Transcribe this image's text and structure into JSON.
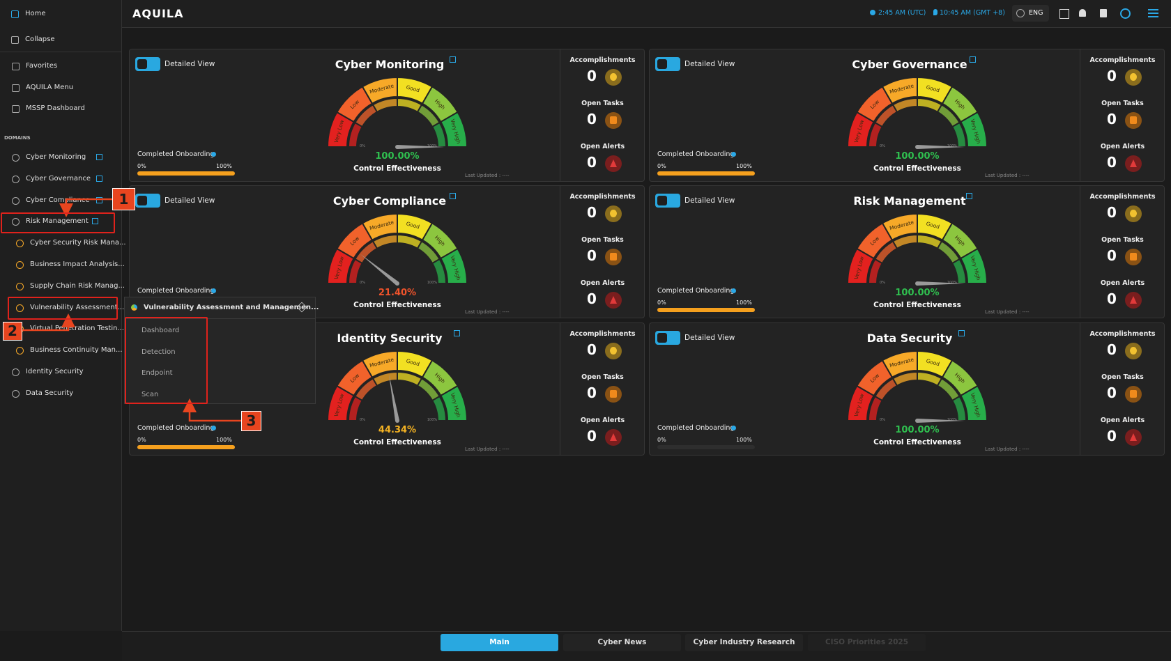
{
  "topbar": {
    "logo": "AQUILA",
    "time_utc": "2:45 AM (UTC)",
    "time_local": "10:45 AM (GMT +8)",
    "language": "ENG"
  },
  "sidebar": {
    "top": [
      "Home",
      "Collapse"
    ],
    "nav": [
      "Favorites",
      "AQUILA Menu",
      "MSSP Dashboard"
    ],
    "section_label": "DOMAINS",
    "domains": [
      {
        "label": "Cyber Monitoring",
        "link": true
      },
      {
        "label": "Cyber Governance",
        "link": true
      },
      {
        "label": "Cyber Compliance",
        "link": true
      },
      {
        "label": "Risk Management",
        "link": true,
        "expanded": true,
        "children": [
          "Cyber Security Risk Mana...",
          "Business Impact Analysis...",
          "Supply Chain Risk Manag...",
          "Vulnerability Assessment...",
          "Virtual Penetration Testin...",
          "Business Continuity Man..."
        ]
      },
      {
        "label": "Identity Security",
        "link": false
      },
      {
        "label": "Data Security",
        "link": false
      }
    ]
  },
  "card_labels": {
    "detailed_view": "Detailed View",
    "completed_onboarding": "Completed Onboarding",
    "onboarding_min": "0%",
    "onboarding_max": "100%",
    "control_effectiveness": "Control Effectiveness",
    "last_updated": "Last Updated : ----",
    "gauge_bands": [
      "Very Low",
      "Low",
      "Moderate",
      "Good",
      "High",
      "Very High"
    ],
    "gauge_colors": [
      "#e3211f",
      "#f1622b",
      "#f7a928",
      "#f2e022",
      "#8cc63f",
      "#27ae4a"
    ],
    "gauge_min": "0%",
    "gauge_max": "100%",
    "stats": [
      "Accomplishments",
      "Open Tasks",
      "Open Alerts"
    ]
  },
  "cards": [
    {
      "title": "Cyber Monitoring",
      "effectiveness": "100.00%",
      "effectiveness_color": "#2fbf4f",
      "stats": [
        0,
        0,
        0
      ],
      "onboarding_bar": true
    },
    {
      "title": "Cyber Governance",
      "effectiveness": "100.00%",
      "effectiveness_color": "#2fbf4f",
      "stats": [
        0,
        0,
        0
      ],
      "onboarding_bar": true
    },
    {
      "title": "Cyber Compliance",
      "effectiveness": "21.40%",
      "effectiveness_color": "#f0532b",
      "stats": [
        0,
        0,
        0
      ],
      "onboarding_bar": false
    },
    {
      "title": "Risk Management",
      "effectiveness": "100.00%",
      "effectiveness_color": "#2fbf4f",
      "stats": [
        0,
        0,
        0
      ],
      "onboarding_bar": true
    },
    {
      "title": "Identity Security",
      "effectiveness": "44.34%",
      "effectiveness_color": "#f5b323",
      "stats": [
        0,
        0,
        0
      ],
      "onboarding_bar": true
    },
    {
      "title": "Data Security",
      "effectiveness": "100.00%",
      "effectiveness_color": "#2fbf4f",
      "stats": [
        0,
        0,
        0
      ],
      "onboarding_bar": false
    }
  ],
  "popup": {
    "title": "Vulnerability Assessment and Managemen...",
    "items": [
      "Dashboard",
      "Detection",
      "Endpoint",
      "Scan"
    ]
  },
  "callouts": [
    "1",
    "2",
    "3"
  ],
  "tabs": [
    {
      "label": "Main",
      "state": "active"
    },
    {
      "label": "Cyber News",
      "state": "normal"
    },
    {
      "label": "Cyber Industry Research",
      "state": "normal"
    },
    {
      "label": "CISO Priorities 2025",
      "state": "disabled"
    }
  ]
}
